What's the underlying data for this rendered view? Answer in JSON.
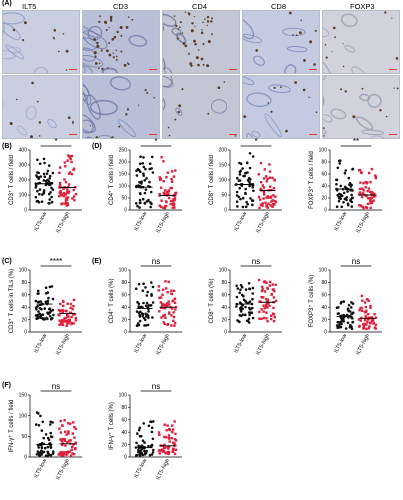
{
  "figure": {
    "panel_letters": [
      "(A)",
      "(B)",
      "(C)",
      "(D)",
      "(E)",
      "(F)"
    ],
    "ihc_markers": [
      "ILT5",
      "CD3",
      "CD4",
      "CD8",
      "FOXP3"
    ],
    "tissue_colors": [
      "#9aa7c8",
      "#7b86b6",
      "#b89a7b"
    ]
  },
  "chart_data": [
    {
      "id": "B1",
      "type": "scatter",
      "panel": "(B)",
      "ylabel": "CD3⁺ T cells / field",
      "categories": [
        "ILT5-low",
        "ILT5-high"
      ],
      "ylim": [
        0,
        400
      ],
      "yticks": [
        0,
        100,
        200,
        300,
        400
      ],
      "significance": "*",
      "medians": [
        175,
        150
      ],
      "spread": [
        [
          40,
          360
        ],
        [
          30,
          390
        ]
      ],
      "n": [
        60,
        60
      ]
    },
    {
      "id": "D1",
      "type": "scatter",
      "panel": "(D)",
      "ylabel": "CD4⁺ T cells / field",
      "categories": [
        "ILT5-low",
        "ILT5-high"
      ],
      "ylim": [
        0,
        250
      ],
      "yticks": [
        0,
        50,
        100,
        150,
        200,
        250
      ],
      "significance": "*",
      "medians": [
        95,
        60
      ],
      "spread": [
        [
          10,
          230
        ],
        [
          5,
          220
        ]
      ],
      "n": [
        55,
        55
      ]
    },
    {
      "id": "D2",
      "type": "scatter",
      "panel": "(D)",
      "ylabel": "CD8⁺ T cells / field",
      "categories": [
        "ILT5-low",
        "ILT5-high"
      ],
      "ylim": [
        0,
        200
      ],
      "yticks": [
        0,
        50,
        100,
        150,
        200
      ],
      "significance": "*",
      "medians": [
        85,
        65
      ],
      "spread": [
        [
          10,
          190
        ],
        [
          5,
          160
        ]
      ],
      "n": [
        55,
        55
      ]
    },
    {
      "id": "D3",
      "type": "scatter",
      "panel": "(D)",
      "ylabel": "FOXP3⁺ T cells / field",
      "categories": [
        "ILT5-low",
        "ILT5-high"
      ],
      "ylim": [
        0,
        100
      ],
      "yticks": [
        0,
        20,
        40,
        60,
        80,
        100
      ],
      "significance": "**",
      "medians": [
        35,
        25
      ],
      "spread": [
        [
          5,
          85
        ],
        [
          3,
          70
        ]
      ],
      "n": [
        55,
        55
      ]
    },
    {
      "id": "C1",
      "type": "scatter",
      "panel": "(C)",
      "ylabel": "CD3⁺ T cells in TILs (%)",
      "categories": [
        "ILT5-low",
        "ILT5-high"
      ],
      "ylim": [
        0,
        100
      ],
      "yticks": [
        0,
        20,
        40,
        60,
        80,
        100
      ],
      "significance": "****",
      "medians": [
        45,
        30
      ],
      "spread": [
        [
          20,
          75
        ],
        [
          10,
          55
        ]
      ],
      "n": [
        60,
        60
      ]
    },
    {
      "id": "E1",
      "type": "scatter",
      "panel": "(E)",
      "ylabel": "CD4⁺ T cells (%)",
      "categories": [
        "ILT5-low",
        "ILT5-high"
      ],
      "ylim": [
        0,
        100
      ],
      "yticks": [
        0,
        20,
        40,
        60,
        80,
        100
      ],
      "significance": "ns",
      "medians": [
        38,
        40
      ],
      "spread": [
        [
          10,
          80
        ],
        [
          10,
          85
        ]
      ],
      "n": [
        55,
        55
      ]
    },
    {
      "id": "E2",
      "type": "scatter",
      "panel": "(E)",
      "ylabel": "CD8⁺ T cells (%)",
      "categories": [
        "ILT5-low",
        "ILT5-high"
      ],
      "ylim": [
        0,
        100
      ],
      "yticks": [
        0,
        20,
        40,
        60,
        80,
        100
      ],
      "significance": "ns",
      "medians": [
        45,
        48
      ],
      "spread": [
        [
          15,
          80
        ],
        [
          15,
          85
        ]
      ],
      "n": [
        55,
        55
      ]
    },
    {
      "id": "E3",
      "type": "scatter",
      "panel": "(E)",
      "ylabel": "FOXP3⁺ T cells (%)",
      "categories": [
        "ILT5-low",
        "ILT5-high"
      ],
      "ylim": [
        0,
        100
      ],
      "yticks": [
        0,
        20,
        40,
        60,
        80,
        100
      ],
      "significance": "ns",
      "medians": [
        25,
        22
      ],
      "spread": [
        [
          5,
          50
        ],
        [
          5,
          60
        ]
      ],
      "n": [
        55,
        55
      ]
    },
    {
      "id": "F1",
      "type": "scatter",
      "panel": "(F)",
      "ylabel": "IFN-γ⁺ T cells / field",
      "categories": [
        "ILT5-low",
        "ILT5-high"
      ],
      "ylim": [
        0,
        150
      ],
      "yticks": [
        0,
        50,
        100,
        150
      ],
      "significance": "ns",
      "medians": [
        30,
        32
      ],
      "spread": [
        [
          2,
          110
        ],
        [
          2,
          120
        ]
      ],
      "n": [
        55,
        55
      ]
    },
    {
      "id": "F2",
      "type": "scatter",
      "panel": "(F)",
      "ylabel": "IFN-γ⁺ T cells (%)",
      "categories": [
        "ILT5-low",
        "ILT5-high"
      ],
      "ylim": [
        0,
        100
      ],
      "yticks": [
        0,
        20,
        40,
        60,
        80,
        100
      ],
      "significance": "ns",
      "medians": [
        15,
        18
      ],
      "spread": [
        [
          2,
          60
        ],
        [
          2,
          60
        ]
      ],
      "n": [
        55,
        55
      ]
    }
  ],
  "colors": {
    "low": "#111111",
    "high": "#e0203a",
    "axis": "#000000"
  }
}
